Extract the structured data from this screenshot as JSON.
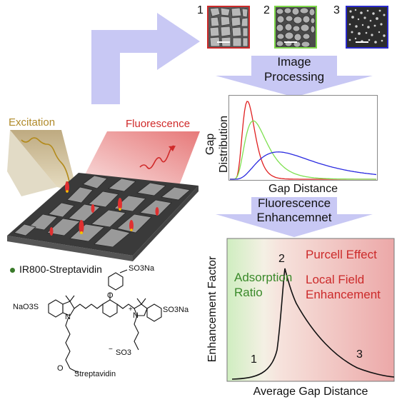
{
  "left_panel": {
    "excitation_label": "Excitation",
    "fluorescence_label": "Fluorescence",
    "legend_text": "IR800-Streptavidin",
    "legend_dot_color": "#3a7a2a",
    "molecule": {
      "group_left": "NaO3S",
      "group_top": "SO3Na",
      "group_right": "SO3Na",
      "n_left": "N",
      "n_right": "N",
      "plus_sign": "+",
      "oxygen": "O",
      "streptavidin": "Streptavidin",
      "keto_o": "O",
      "sulfonate_bottom": "SO3",
      "minus_sign": "−"
    }
  },
  "thumbnails": [
    {
      "number": "1",
      "border_color": "#cc2a2a",
      "style": "large-grain"
    },
    {
      "number": "2",
      "border_color": "#7ed84a",
      "style": "medium-grain"
    },
    {
      "number": "3",
      "border_color": "#2a2acc",
      "style": "fine-dots"
    }
  ],
  "steps": {
    "image_processing_line1": "Image",
    "image_processing_line2": "Processing",
    "fluorescence_line1": "Fluorescence",
    "fluorescence_line2": "Enhancemnet"
  },
  "gap_chart": {
    "type": "line",
    "ylabel_line1": "Gap",
    "ylabel_line2": "Distribution",
    "xlabel": "Gap Distance",
    "series": [
      {
        "color": "#e02020",
        "peak_x": 0.12,
        "peak_y": 1.0
      },
      {
        "color": "#7ee050",
        "peak_x": 0.16,
        "peak_y": 0.75
      },
      {
        "color": "#2a2ae0",
        "peak_x": 0.33,
        "peak_y": 0.35
      }
    ]
  },
  "enhancement_chart": {
    "ylabel": "Enhancement Factor",
    "xlabel": "Average Gap Distance",
    "left_label_line1": "Adsorption",
    "left_label_line2": "Ratio",
    "right_label_1": "Purcell Effect",
    "right_label_2_line1": "Local Field",
    "right_label_2_line2": "Enhancement",
    "marker_1": "1",
    "marker_2": "2",
    "marker_3": "3",
    "left_label_color": "#3a8a2a",
    "right_label_color": "#cc2a2a"
  },
  "colors": {
    "arrow": "#c8c8f4",
    "excitation_text": "#b08a2a",
    "fluorescence_text": "#d02a2a"
  }
}
